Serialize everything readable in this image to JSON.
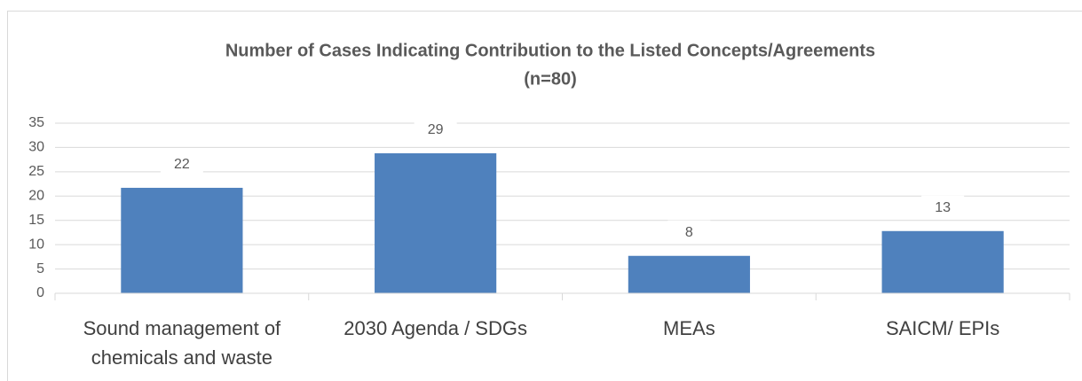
{
  "chart_data": {
    "type": "bar",
    "title": "Number of Cases Indicating Contribution to the Listed Concepts/Agreements",
    "subtitle": "(n=80)",
    "categories": [
      "Sound management of chemicals and waste",
      "2030 Agenda / SDGs",
      "MEAs",
      "SAICM/ EPIs"
    ],
    "values": [
      21.7,
      28.8,
      7.7,
      12.8
    ],
    "value_labels": [
      "22",
      "29",
      "8",
      "13"
    ],
    "color": "#4f81bd",
    "ylim": [
      0,
      35
    ],
    "yticks": [
      0,
      5,
      10,
      15,
      20,
      25,
      30,
      35
    ],
    "grid": true
  }
}
